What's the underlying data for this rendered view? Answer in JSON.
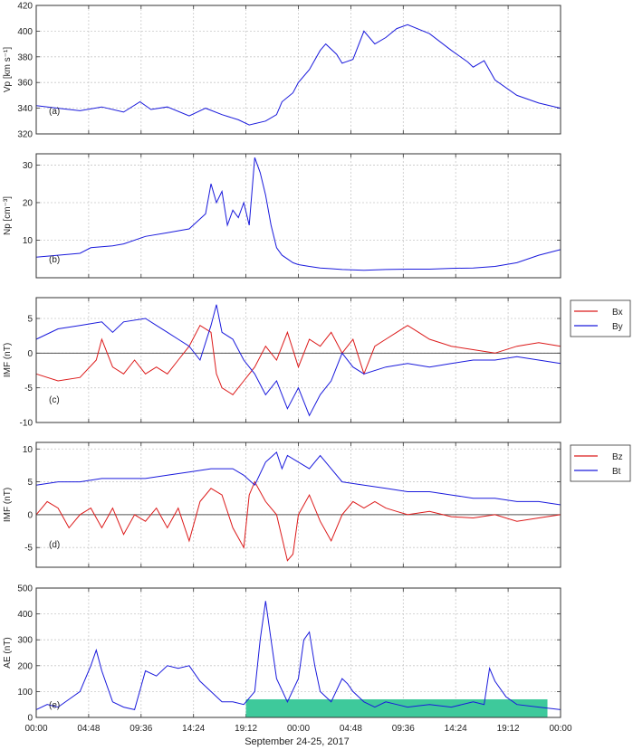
{
  "xlabel": "September 24-25, 2017",
  "x_ticks": [
    "00:00",
    "04:48",
    "09:36",
    "14:24",
    "19:12",
    "00:00",
    "04:48",
    "09:36",
    "14:24",
    "19:12",
    "00:00"
  ],
  "chart_data": [
    {
      "type": "line",
      "panel_label": "(a)",
      "ylabel": "Vp [km s⁻¹]",
      "ylim": [
        320,
        420
      ],
      "yticks": [
        320,
        340,
        360,
        380,
        400,
        420
      ],
      "grid": true,
      "x_unit": "hours since 2017-09-24 00:00",
      "series": [
        {
          "name": "",
          "color": "#1a1adc",
          "x": [
            0,
            2,
            4,
            6,
            8,
            9.5,
            10.5,
            12,
            14,
            15.5,
            17,
            18.5,
            19.5,
            21,
            22,
            22.5,
            23.5,
            24,
            25,
            26,
            26.5,
            27.5,
            28,
            29,
            30,
            31,
            32,
            33,
            34,
            36,
            38,
            39.5,
            40,
            41,
            42,
            44,
            46,
            48
          ],
          "y": [
            342,
            340,
            338,
            341,
            337,
            345,
            339,
            341,
            334,
            340,
            335,
            331,
            327,
            330,
            335,
            345,
            352,
            360,
            370,
            385,
            390,
            382,
            375,
            378,
            400,
            390,
            395,
            402,
            405,
            398,
            385,
            376,
            372,
            377,
            362,
            350,
            344,
            340
          ]
        }
      ]
    },
    {
      "type": "line",
      "panel_label": "(b)",
      "ylabel": "Np [cm⁻³]",
      "ylim": [
        0,
        33
      ],
      "yticks": [
        10,
        20,
        30
      ],
      "grid": true,
      "x_unit": "hours since 2017-09-24 00:00",
      "series": [
        {
          "name": "",
          "color": "#1a1adc",
          "x": [
            0,
            2,
            4,
            5,
            7,
            8,
            10,
            12,
            14,
            15.5,
            16,
            16.5,
            17,
            17.5,
            18,
            18.5,
            19,
            19.5,
            20,
            20.5,
            21,
            21.5,
            22,
            22.5,
            23,
            23.5,
            24,
            25,
            26,
            27,
            28,
            30,
            32,
            34,
            36,
            38,
            40,
            42,
            44,
            46,
            48
          ],
          "y": [
            5.5,
            6,
            6.5,
            8,
            8.5,
            9,
            11,
            12,
            13,
            17,
            25,
            20,
            23,
            14,
            18,
            16,
            20,
            14,
            32,
            28,
            22,
            14,
            8,
            6,
            5,
            4,
            3.5,
            3,
            2.6,
            2.4,
            2.2,
            2,
            2.2,
            2.3,
            2.3,
            2.5,
            2.6,
            3,
            4,
            6,
            7.5
          ]
        }
      ]
    },
    {
      "type": "line",
      "panel_label": "(c)",
      "ylabel": "IMF (nT)",
      "ylim": [
        -10,
        8
      ],
      "yticks": [
        -10,
        -5,
        0,
        5
      ],
      "grid": true,
      "zero_line": true,
      "x_unit": "hours since 2017-09-24 00:00",
      "series": [
        {
          "name": "Bx",
          "color": "#dc1a1a",
          "x": [
            0,
            2,
            4,
            5.5,
            6,
            7,
            8,
            9,
            10,
            11,
            12,
            13,
            14,
            15,
            16,
            16.5,
            17,
            18,
            19,
            20,
            21,
            22,
            23,
            24,
            25,
            26,
            27,
            28,
            29,
            30,
            31,
            32,
            33,
            34,
            35,
            36,
            38,
            40,
            42,
            44,
            46,
            48
          ],
          "y": [
            -3,
            -4,
            -3.5,
            -1,
            2,
            -2,
            -3,
            -1,
            -3,
            -2,
            -3,
            -1,
            1,
            4,
            3,
            -3,
            -5,
            -6,
            -4,
            -2,
            1,
            -1,
            3,
            -2,
            2,
            1,
            3,
            0,
            2,
            -3,
            1,
            2,
            3,
            4,
            3,
            2,
            1,
            0.5,
            0,
            1,
            1.5,
            1
          ]
        },
        {
          "name": "By",
          "color": "#1a1adc",
          "x": [
            0,
            2,
            4,
            6,
            7,
            8,
            10,
            11,
            12,
            13,
            14,
            15,
            16,
            16.5,
            17,
            18,
            19,
            20,
            21,
            22,
            23,
            24,
            25,
            26,
            27,
            28,
            29,
            30,
            32,
            34,
            36,
            38,
            40,
            42,
            44,
            46,
            48
          ],
          "y": [
            2,
            3.5,
            4,
            4.5,
            3,
            4.5,
            5,
            4,
            3,
            2,
            1,
            -1,
            4,
            7,
            3,
            2,
            -1,
            -3,
            -6,
            -4,
            -8,
            -5,
            -9,
            -6,
            -4,
            0,
            -2,
            -3,
            -2,
            -1.5,
            -2,
            -1.5,
            -1,
            -1,
            -0.5,
            -1,
            -1.5
          ]
        }
      ]
    },
    {
      "type": "line",
      "panel_label": "(d)",
      "ylabel": "IMF (nT)",
      "ylim": [
        -8,
        11
      ],
      "yticks": [
        -5,
        0,
        5,
        10
      ],
      "grid": true,
      "zero_line": true,
      "x_unit": "hours since 2017-09-24 00:00",
      "series": [
        {
          "name": "Bz",
          "color": "#dc1a1a",
          "x": [
            0,
            1,
            2,
            3,
            4,
            5,
            6,
            7,
            8,
            9,
            10,
            11,
            12,
            13,
            14,
            15,
            16,
            17,
            18,
            19,
            19.5,
            20,
            21,
            22,
            23,
            23.5,
            24,
            25,
            26,
            27,
            28,
            29,
            30,
            31,
            32,
            33,
            34,
            36,
            38,
            40,
            42,
            44,
            46,
            48
          ],
          "y": [
            0,
            2,
            1,
            -2,
            0,
            1,
            -2,
            1,
            -3,
            0,
            -1,
            1,
            -2,
            1,
            -4,
            2,
            4,
            3,
            -2,
            -5,
            3,
            5,
            2,
            0,
            -7,
            -6,
            0,
            3,
            -1,
            -4,
            0,
            2,
            1,
            2,
            1,
            0.5,
            0,
            0.5,
            -0.3,
            -0.5,
            0,
            -1,
            -0.5,
            0
          ]
        },
        {
          "name": "Bt",
          "color": "#1a1adc",
          "x": [
            0,
            2,
            4,
            6,
            8,
            10,
            12,
            14,
            16,
            18,
            19,
            20,
            21,
            22,
            22.5,
            23,
            24,
            25,
            26,
            27,
            28,
            30,
            32,
            34,
            36,
            38,
            40,
            42,
            44,
            46,
            48
          ],
          "y": [
            4.5,
            5,
            5,
            5.5,
            5.5,
            5.5,
            6,
            6.5,
            7,
            7,
            6,
            4.5,
            8,
            9.5,
            7,
            9,
            8,
            7,
            9,
            7,
            5,
            4.5,
            4,
            3.5,
            3.5,
            3,
            2.5,
            2.5,
            2,
            2,
            1.5
          ]
        }
      ]
    },
    {
      "type": "line",
      "panel_label": "(e)",
      "ylabel": "AE (nT)",
      "ylim": [
        0,
        500
      ],
      "yticks": [
        0,
        100,
        200,
        300,
        400,
        500
      ],
      "grid": true,
      "highlight": {
        "x_start": 19.2,
        "x_end": 46.8,
        "y_max": 70,
        "color": "#3ec99b"
      },
      "x_unit": "hours since 2017-09-24 00:00",
      "series": [
        {
          "name": "",
          "color": "#1a1adc",
          "x": [
            0,
            1,
            2,
            3,
            4,
            5,
            5.5,
            6,
            7,
            8,
            9,
            10,
            11,
            12,
            13,
            14,
            15,
            16,
            17,
            18,
            19,
            20,
            20.5,
            21,
            21.5,
            22,
            23,
            24,
            24.5,
            25,
            25.5,
            26,
            27,
            28,
            28.5,
            29,
            30,
            31,
            32,
            33,
            34,
            35,
            36,
            38,
            40,
            41,
            41.5,
            42,
            43,
            44,
            46,
            48
          ],
          "y": [
            30,
            50,
            40,
            70,
            100,
            200,
            260,
            180,
            60,
            40,
            30,
            180,
            160,
            200,
            190,
            200,
            140,
            100,
            60,
            60,
            50,
            100,
            300,
            450,
            300,
            150,
            60,
            150,
            300,
            330,
            200,
            100,
            60,
            150,
            130,
            100,
            60,
            40,
            60,
            50,
            40,
            45,
            50,
            40,
            60,
            50,
            190,
            140,
            80,
            50,
            40,
            30
          ]
        }
      ]
    }
  ]
}
